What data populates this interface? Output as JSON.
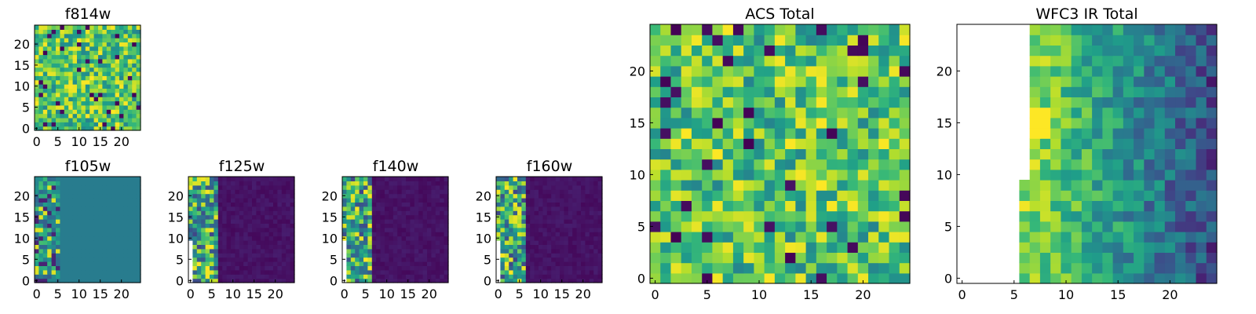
{
  "chart_data": [
    {
      "id": "f814w",
      "type": "heatmap",
      "title": "f814w",
      "xticks": [
        "0",
        "5",
        "10",
        "15",
        "20"
      ],
      "yticks": [
        "0",
        "5",
        "10",
        "15",
        "20"
      ],
      "xlim": [
        0,
        25
      ],
      "ylim": [
        0,
        25
      ],
      "grid_size": 25,
      "pattern": "noise",
      "seed": 11
    },
    {
      "id": "f105w",
      "type": "heatmap",
      "title": "f105w",
      "xticks": [
        "0",
        "5",
        "10",
        "15",
        "20"
      ],
      "yticks": [
        "0",
        "5",
        "10",
        "15",
        "20"
      ],
      "xlim": [
        0,
        25
      ],
      "ylim": [
        0,
        25
      ],
      "grid_size": 25,
      "pattern": "flat-teal",
      "seed": 21
    },
    {
      "id": "f125w",
      "type": "heatmap",
      "title": "f125w",
      "xticks": [
        "0",
        "5",
        "10",
        "15",
        "20"
      ],
      "yticks": [
        "0",
        "5",
        "10",
        "15",
        "20"
      ],
      "xlim": [
        0,
        25
      ],
      "ylim": [
        0,
        25
      ],
      "grid_size": 25,
      "pattern": "edge-dark",
      "seed": 31
    },
    {
      "id": "f140w",
      "type": "heatmap",
      "title": "f140w",
      "xticks": [
        "0",
        "5",
        "10",
        "15",
        "20"
      ],
      "yticks": [
        "0",
        "5",
        "10",
        "15",
        "20"
      ],
      "xlim": [
        0,
        25
      ],
      "ylim": [
        0,
        25
      ],
      "grid_size": 25,
      "pattern": "edge-dark",
      "seed": 41
    },
    {
      "id": "f160w",
      "type": "heatmap",
      "title": "f160w",
      "xticks": [
        "0",
        "5",
        "10",
        "15",
        "20"
      ],
      "yticks": [
        "0",
        "5",
        "10",
        "15",
        "20"
      ],
      "xlim": [
        0,
        25
      ],
      "ylim": [
        0,
        25
      ],
      "grid_size": 25,
      "pattern": "edge-dark",
      "seed": 51
    },
    {
      "id": "acs_total",
      "type": "heatmap",
      "title": "ACS Total",
      "xticks": [
        "0",
        "5",
        "10",
        "15",
        "20"
      ],
      "yticks": [
        "0",
        "5",
        "10",
        "15",
        "20"
      ],
      "xlim": [
        0,
        25
      ],
      "ylim": [
        0,
        25
      ],
      "grid_size": 25,
      "pattern": "noise",
      "seed": 71
    },
    {
      "id": "wfc3_ir_total",
      "type": "heatmap",
      "title": "WFC3 IR Total",
      "xticks": [
        "0",
        "5",
        "10",
        "15",
        "20"
      ],
      "yticks": [
        "0",
        "5",
        "10",
        "15",
        "20"
      ],
      "xlim": [
        0,
        25
      ],
      "ylim": [
        0,
        25
      ],
      "grid_size": 25,
      "pattern": "gradient-masked",
      "seed": 91
    }
  ],
  "colors": {
    "background": "#ffffff",
    "axis": "#000000",
    "colormap": "viridis"
  }
}
